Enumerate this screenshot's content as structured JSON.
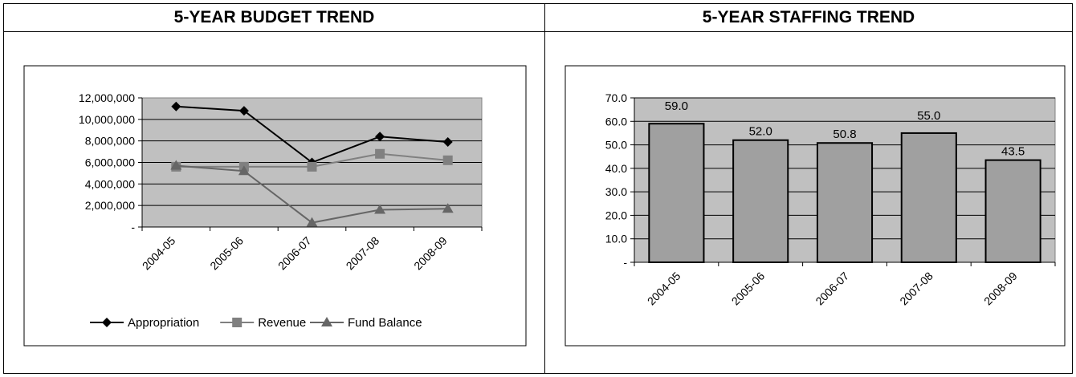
{
  "panels": {
    "budget": {
      "title": "5-YEAR BUDGET TREND"
    },
    "staffing": {
      "title": "5-YEAR STAFFING TREND"
    }
  },
  "chart_data": [
    {
      "type": "line",
      "title": "",
      "xlabel": "",
      "ylabel": "",
      "categories": [
        "2004-05",
        "2005-06",
        "2006-07",
        "2007-08",
        "2008-09"
      ],
      "series": [
        {
          "name": "Appropriation",
          "marker": "diamond",
          "color": "#000000",
          "values": [
            11200000,
            10800000,
            6000000,
            8400000,
            7900000
          ]
        },
        {
          "name": "Revenue",
          "marker": "square",
          "color": "#808080",
          "values": [
            5600000,
            5600000,
            5600000,
            6800000,
            6200000
          ]
        },
        {
          "name": "Fund Balance",
          "marker": "triangle",
          "color": "#666666",
          "values": [
            5700000,
            5200000,
            400000,
            1600000,
            1700000
          ]
        }
      ],
      "yticks": [
        "-",
        "2,000,000",
        "4,000,000",
        "6,000,000",
        "8,000,000",
        "10,000,000",
        "12,000,000"
      ],
      "ylim": [
        0,
        12000000
      ],
      "grid": true,
      "plot_background": "#c0c0c0",
      "legend": "bottom"
    },
    {
      "type": "bar",
      "title": "",
      "xlabel": "",
      "ylabel": "",
      "categories": [
        "2004-05",
        "2005-06",
        "2006-07",
        "2007-08",
        "2008-09"
      ],
      "values": [
        59.0,
        52.0,
        50.8,
        55.0,
        43.5
      ],
      "data_labels": [
        "59.0",
        "52.0",
        "50.8",
        "55.0",
        "43.5"
      ],
      "yticks": [
        "-",
        "10.0",
        "20.0",
        "30.0",
        "40.0",
        "50.0",
        "60.0",
        "70.0"
      ],
      "ylim": [
        0,
        70
      ],
      "grid": true,
      "bar_color": "#a0a0a0",
      "plot_background": "#c0c0c0"
    }
  ]
}
